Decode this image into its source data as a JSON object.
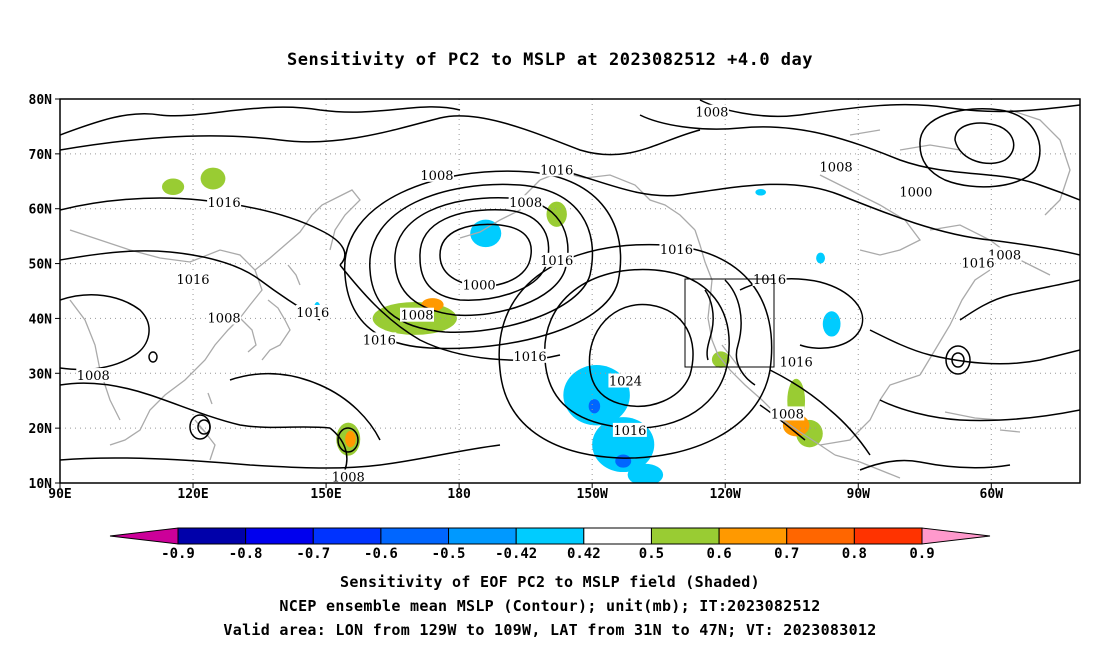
{
  "title": "Sensitivity of PC2 to MSLP at 2023082512 +4.0 day",
  "map": {
    "lat_labels": [
      "80N",
      "70N",
      "60N",
      "50N",
      "40N",
      "30N",
      "20N",
      "10N"
    ],
    "lon_labels": [
      "90E",
      "120E",
      "150E",
      "180",
      "150W",
      "120W",
      "90W",
      "60W"
    ],
    "lon_range": [
      90,
      320
    ],
    "lat_range": [
      10,
      80
    ],
    "grid": "dotted",
    "coastline_color": "#aaaaaa",
    "contour_color": "#000000",
    "valid_box": {
      "lon": [
        -129,
        -109
      ],
      "lat": [
        31,
        47
      ]
    },
    "contour_labels": [
      {
        "text": "1008",
        "lon": -123,
        "lat": 77.5
      },
      {
        "text": "1016",
        "lon": -158,
        "lat": 67
      },
      {
        "text": "1008",
        "lon": 175,
        "lat": 66
      },
      {
        "text": "1008",
        "lon": -95,
        "lat": 67.5
      },
      {
        "text": "1000",
        "lon": -77,
        "lat": 63
      },
      {
        "text": "1016",
        "lon": 127,
        "lat": 61
      },
      {
        "text": "1008",
        "lon": -165,
        "lat": 61
      },
      {
        "text": "1016",
        "lon": -131,
        "lat": 52.5
      },
      {
        "text": "1016",
        "lon": -158,
        "lat": 50.5
      },
      {
        "text": "1008",
        "lon": -57,
        "lat": 51.5
      },
      {
        "text": "1016",
        "lon": -63,
        "lat": 50
      },
      {
        "text": "1016",
        "lon": 120,
        "lat": 47
      },
      {
        "text": "1016",
        "lon": -110,
        "lat": 47
      },
      {
        "text": "1000",
        "lon": -175.5,
        "lat": 46
      },
      {
        "text": "1016",
        "lon": 147,
        "lat": 41
      },
      {
        "text": "1008",
        "lon": 127,
        "lat": 40
      },
      {
        "text": "1008",
        "lon": 170.5,
        "lat": 40.5
      },
      {
        "text": "1016",
        "lon": 162,
        "lat": 36
      },
      {
        "text": "1016",
        "lon": -164,
        "lat": 33
      },
      {
        "text": "1016",
        "lon": -104,
        "lat": 32
      },
      {
        "text": "1008",
        "lon": 97.5,
        "lat": 29.5
      },
      {
        "text": "1024",
        "lon": -142.5,
        "lat": 28.5
      },
      {
        "text": "1008",
        "lon": -106,
        "lat": 22.5
      },
      {
        "text": "1016",
        "lon": -141.5,
        "lat": 19.5
      },
      {
        "text": "1008",
        "lon": 155,
        "lat": 11
      }
    ]
  },
  "colorbar": {
    "labels": [
      "-0.9",
      "-0.8",
      "-0.7",
      "-0.6",
      "-0.5",
      "-0.42",
      "0.42",
      "0.5",
      "0.6",
      "0.7",
      "0.8",
      "0.9"
    ],
    "colors": [
      "#cc0099",
      "#0000aa",
      "#0000ee",
      "#0033ff",
      "#0066ff",
      "#0099ff",
      "#00ccff",
      "#ffffff",
      "#99cc33",
      "#ff9900",
      "#ff6600",
      "#ff3300",
      "#ff0000",
      "#ff99cc"
    ]
  },
  "shaded_areas": [
    {
      "level": 0.5,
      "lon": 115.5,
      "lat": 64,
      "rx": 2.5,
      "ry": 1.5
    },
    {
      "level": 0.5,
      "lon": 124.5,
      "lat": 65.5,
      "rx": 2.8,
      "ry": 2.0
    },
    {
      "level": 0.5,
      "lon": -158,
      "lat": 59,
      "rx": 2.3,
      "ry": 2.3
    },
    {
      "level": 0.5,
      "lon": 170,
      "lat": 40,
      "rx": 9.5,
      "ry": 3.0
    },
    {
      "level": 0.6,
      "lon": 174,
      "lat": 42.5,
      "rx": 2.5,
      "ry": 1.2
    },
    {
      "level": 0.5,
      "lon": 155,
      "lat": 18,
      "rx": 2.7,
      "ry": 3.0
    },
    {
      "level": 0.6,
      "lon": 155.5,
      "lat": 18,
      "rx": 1.2,
      "ry": 1.5
    },
    {
      "level": 0.5,
      "lon": -121,
      "lat": 32.5,
      "rx": 2.0,
      "ry": 1.5
    },
    {
      "level": 0.5,
      "lon": -104,
      "lat": 25,
      "rx": 2.0,
      "ry": 4.0
    },
    {
      "level": 0.5,
      "lon": -101,
      "lat": 19,
      "rx": 3.0,
      "ry": 2.5
    },
    {
      "level": 0.6,
      "lon": -104,
      "lat": 20.5,
      "rx": 3.0,
      "ry": 2.0
    },
    {
      "level": -0.5,
      "lon": -174,
      "lat": 55.5,
      "rx": 3.5,
      "ry": 2.5
    },
    {
      "level": -0.5,
      "lon": -112,
      "lat": 63,
      "rx": 1.2,
      "ry": 0.6
    },
    {
      "level": -0.5,
      "lon": -98.5,
      "lat": 51,
      "rx": 1.0,
      "ry": 1.0
    },
    {
      "level": -0.5,
      "lon": -96,
      "lat": 39,
      "rx": 2.0,
      "ry": 2.3
    },
    {
      "level": -0.5,
      "lon": 148,
      "lat": 41.5,
      "rx": 0.8,
      "ry": 1.5
    },
    {
      "level": -0.5,
      "lon": -149,
      "lat": 26,
      "rx": 7.5,
      "ry": 5.5
    },
    {
      "level": -0.5,
      "lon": -143,
      "lat": 17,
      "rx": 7.0,
      "ry": 5.0
    },
    {
      "level": -0.5,
      "lon": -138,
      "lat": 11.5,
      "rx": 4.0,
      "ry": 2.0
    },
    {
      "level": -0.6,
      "lon": -149.5,
      "lat": 24,
      "rx": 1.3,
      "ry": 1.3
    },
    {
      "level": -0.6,
      "lon": -143,
      "lat": 14,
      "rx": 1.8,
      "ry": 1.2
    }
  ],
  "captions": [
    "Sensitivity of EOF PC2 to MSLP field (Shaded)",
    "NCEP ensemble mean MSLP (Contour); unit(mb); IT:2023082512",
    "Valid area: LON from 129W to 109W, LAT from 31N to 47N; VT: 2023083012"
  ]
}
